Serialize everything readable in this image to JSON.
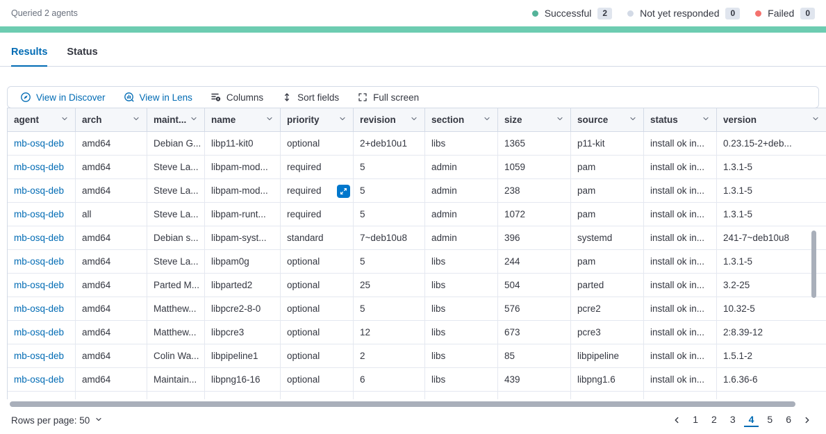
{
  "header": {
    "queried_text": "Queried 2 agents",
    "statuses": [
      {
        "label": "Successful",
        "count": "2",
        "color": "#54B399"
      },
      {
        "label": "Not yet responded",
        "count": "0",
        "color": "#D3DAE6"
      },
      {
        "label": "Failed",
        "count": "0",
        "color": "#F4726E"
      }
    ],
    "progress_color": "#6DCCB1"
  },
  "tabs": [
    {
      "label": "Results"
    },
    {
      "label": "Status"
    }
  ],
  "toolbar": {
    "items": [
      {
        "label": "View in Discover",
        "icon": "discover-icon"
      },
      {
        "label": "View in Lens",
        "icon": "lens-icon"
      },
      {
        "label": "Columns",
        "icon": "columns-icon"
      },
      {
        "label": "Sort fields",
        "icon": "sort-icon"
      },
      {
        "label": "Full screen",
        "icon": "fullscreen-icon"
      }
    ]
  },
  "table": {
    "columns": [
      "agent",
      "arch",
      "maint...",
      "name",
      "priority",
      "revision",
      "section",
      "size",
      "source",
      "status",
      "version"
    ],
    "rows": [
      [
        "mb-osq-deb",
        "amd64",
        "Debian G...",
        "libp11-kit0",
        "optional",
        "2+deb10u1",
        "libs",
        "1365",
        "p11-kit",
        "install ok in...",
        "0.23.15-2+deb..."
      ],
      [
        "mb-osq-deb",
        "amd64",
        "Steve La...",
        "libpam-mod...",
        "required",
        "5",
        "admin",
        "1059",
        "pam",
        "install ok in...",
        "1.3.1-5"
      ],
      [
        "mb-osq-deb",
        "amd64",
        "Steve La...",
        "libpam-mod...",
        "required",
        "5",
        "admin",
        "238",
        "pam",
        "install ok in...",
        "1.3.1-5"
      ],
      [
        "mb-osq-deb",
        "all",
        "Steve La...",
        "libpam-runt...",
        "required",
        "5",
        "admin",
        "1072",
        "pam",
        "install ok in...",
        "1.3.1-5"
      ],
      [
        "mb-osq-deb",
        "amd64",
        "Debian s...",
        "libpam-syst...",
        "standard",
        "7~deb10u8",
        "admin",
        "396",
        "systemd",
        "install ok in...",
        "241-7~deb10u8"
      ],
      [
        "mb-osq-deb",
        "amd64",
        "Steve La...",
        "libpam0g",
        "optional",
        "5",
        "libs",
        "244",
        "pam",
        "install ok in...",
        "1.3.1-5"
      ],
      [
        "mb-osq-deb",
        "amd64",
        "Parted M...",
        "libparted2",
        "optional",
        "25",
        "libs",
        "504",
        "parted",
        "install ok in...",
        "3.2-25"
      ],
      [
        "mb-osq-deb",
        "amd64",
        "Matthew...",
        "libpcre2-8-0",
        "optional",
        "5",
        "libs",
        "576",
        "pcre2",
        "install ok in...",
        "10.32-5"
      ],
      [
        "mb-osq-deb",
        "amd64",
        "Matthew...",
        "libpcre3",
        "optional",
        "12",
        "libs",
        "673",
        "pcre3",
        "install ok in...",
        "2:8.39-12"
      ],
      [
        "mb-osq-deb",
        "amd64",
        "Colin Wa...",
        "libpipeline1",
        "optional",
        "2",
        "libs",
        "85",
        "libpipeline",
        "install ok in...",
        "1.5.1-2"
      ],
      [
        "mb-osq-deb",
        "amd64",
        "Maintain...",
        "libpng16-16",
        "optional",
        "6",
        "libs",
        "439",
        "libpng1.6",
        "install ok in...",
        "1.6.36-6"
      ]
    ],
    "expanded_cell": {
      "row_index": 2,
      "col_index": 4
    }
  },
  "footer": {
    "rows_per_page_label": "Rows per page: 50",
    "pages": [
      "1",
      "2",
      "3",
      "4",
      "5",
      "6"
    ],
    "active_page": "4"
  },
  "colors": {
    "primary_blue": "#006BB4",
    "expand_button_blue": "#0077CC",
    "progress_green": "#6DCCB1",
    "badge_background": "#E0E5EE",
    "border": "#D3DAE6",
    "text": "#343741",
    "subdued_text": "#69707D"
  }
}
